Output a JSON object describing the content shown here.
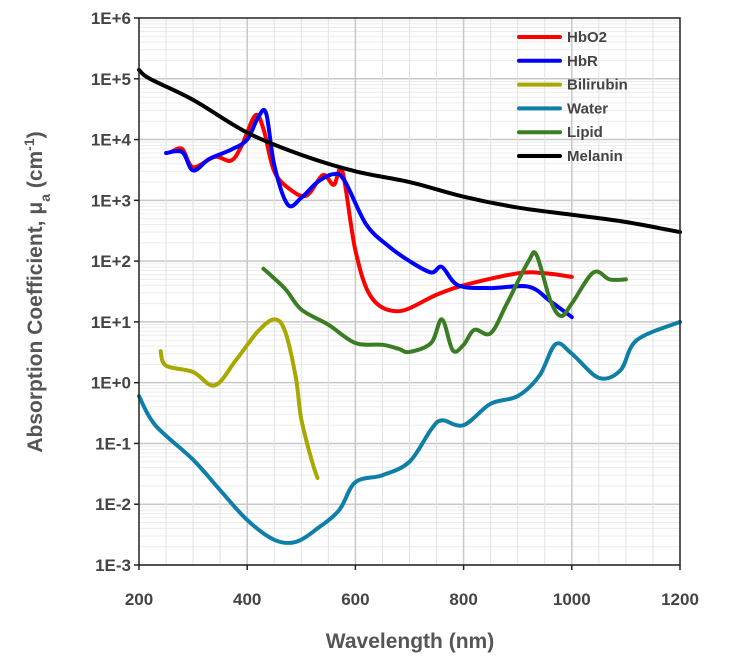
{
  "chart_data": {
    "type": "line",
    "title": "",
    "xlabel": "Wavelength (nm)",
    "ylabel": "Absorption Coefficient, μa (cm-1)",
    "ylabel_parts": {
      "main": "Absorption Coefficient, μ",
      "sub": "a",
      "unit_open": " (cm",
      "sup": "-1",
      "unit_close": ")"
    },
    "xlim": [
      200,
      1200
    ],
    "ylim": [
      0.001,
      1000000
    ],
    "yscale": "log",
    "grid": true,
    "legend": "top-right",
    "x_ticks": [
      "200",
      "400",
      "600",
      "800",
      "1000",
      "1200"
    ],
    "y_ticks": [
      "1E+6",
      "1E+5",
      "1E+4",
      "1E+3",
      "1E+2",
      "1E+1",
      "1E+0",
      "1E-1",
      "1E-2",
      "1E-3"
    ],
    "series": [
      {
        "name": "HbO2",
        "color": "#ff0000",
        "x": [
          260,
          280,
          300,
          340,
          370,
          390,
          415,
          430,
          450,
          480,
          510,
          540,
          560,
          576,
          600,
          630,
          680,
          750,
          800,
          900,
          950,
          1000
        ],
        "y": [
          6300,
          7000,
          3500,
          5200,
          4500,
          8000,
          25000,
          15000,
          3000,
          1500,
          1200,
          2600,
          1800,
          3000,
          150,
          25,
          15,
          28,
          40,
          63,
          63,
          55
        ]
      },
      {
        "name": "HbR",
        "color": "#0000ff",
        "x": [
          250,
          280,
          300,
          330,
          370,
          400,
          420,
          435,
          450,
          475,
          500,
          530,
          560,
          580,
          620,
          660,
          700,
          740,
          760,
          790,
          850,
          920,
          960,
          1000
        ],
        "y": [
          6000,
          6200,
          3100,
          4800,
          6800,
          10000,
          23000,
          27000,
          3800,
          850,
          1100,
          2000,
          2700,
          2100,
          400,
          180,
          100,
          65,
          80,
          40,
          36,
          38,
          22,
          12
        ]
      },
      {
        "name": "Bilirubin",
        "color": "#a8a800",
        "x": [
          240,
          250,
          300,
          340,
          380,
          420,
          450,
          470,
          490,
          500,
          520,
          530
        ],
        "y": [
          3.3,
          1.9,
          1.5,
          0.9,
          2.4,
          7,
          11,
          7,
          1.2,
          0.25,
          0.05,
          0.027
        ]
      },
      {
        "name": "Water",
        "color": "#0e7fa6",
        "x": [
          200,
          230,
          300,
          350,
          400,
          450,
          490,
          530,
          570,
          600,
          650,
          700,
          740,
          760,
          800,
          850,
          900,
          940,
          970,
          1000,
          1050,
          1090,
          1120,
          1200
        ],
        "y": [
          0.6,
          0.2,
          0.054,
          0.017,
          0.0055,
          0.0026,
          0.0024,
          0.004,
          0.008,
          0.023,
          0.03,
          0.05,
          0.17,
          0.24,
          0.2,
          0.45,
          0.6,
          1.3,
          4.3,
          3,
          1.2,
          1.6,
          5,
          10
        ]
      },
      {
        "name": "Lipid",
        "color": "#3a7d22",
        "x": [
          430,
          470,
          500,
          550,
          600,
          650,
          680,
          700,
          740,
          760,
          780,
          800,
          820,
          850,
          880,
          920,
          935,
          960,
          980,
          1000,
          1040,
          1070,
          1100
        ],
        "y": [
          75,
          35,
          16,
          9,
          4.5,
          4.2,
          3.6,
          3.2,
          4.5,
          11,
          3.4,
          4.2,
          7.4,
          6.5,
          20,
          100,
          125,
          23,
          12.5,
          20,
          65,
          50,
          50
        ]
      },
      {
        "name": "Melanin",
        "color": "#000000",
        "x": [
          200,
          220,
          300,
          400,
          500,
          600,
          700,
          800,
          900,
          1000,
          1100,
          1200
        ],
        "y": [
          140000,
          100000,
          45000,
          13000,
          5600,
          3000,
          2000,
          1150,
          760,
          580,
          440,
          300
        ]
      }
    ]
  }
}
